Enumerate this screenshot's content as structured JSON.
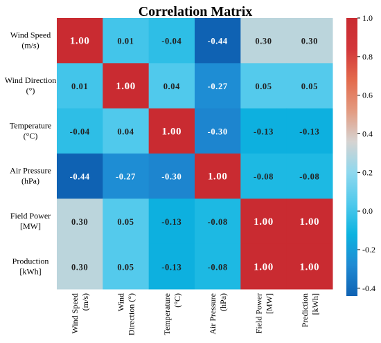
{
  "chart_data": {
    "type": "heatmap",
    "title": "Correlation Matrix",
    "row_labels": [
      [
        "Wind Speed",
        "(m/s)"
      ],
      [
        "Wind Direction",
        "(°)"
      ],
      [
        "Temperature",
        "(°C)"
      ],
      [
        "Air Pressure",
        "(hPa)"
      ],
      [
        "Field Power",
        "[MW]"
      ],
      [
        "Production",
        "[kWh]"
      ]
    ],
    "col_labels": [
      [
        "Wind Speed",
        "(m/s)"
      ],
      [
        "Wind",
        "Direction (°)"
      ],
      [
        "Temperature",
        "(°C)"
      ],
      [
        "Air Pressure",
        "(hPa)"
      ],
      [
        "Field Power",
        "[MW]"
      ],
      [
        "Prediction",
        "[kWh]"
      ]
    ],
    "values": [
      [
        1.0,
        0.01,
        -0.04,
        -0.44,
        0.3,
        0.3
      ],
      [
        0.01,
        1.0,
        0.04,
        -0.27,
        0.05,
        0.05
      ],
      [
        -0.04,
        0.04,
        1.0,
        -0.3,
        -0.13,
        -0.13
      ],
      [
        -0.44,
        -0.27,
        -0.3,
        1.0,
        -0.08,
        -0.08
      ],
      [
        0.3,
        0.05,
        -0.13,
        -0.08,
        1.0,
        1.0
      ],
      [
        0.3,
        0.05,
        -0.13,
        -0.08,
        1.0,
        1.0
      ]
    ],
    "value_labels": [
      [
        "1.00",
        "0.01",
        "-0.04",
        "-0.44",
        "0.30",
        "0.30"
      ],
      [
        "0.01",
        "1.00",
        "0.04",
        "-0.27",
        "0.05",
        "0.05"
      ],
      [
        "-0.04",
        "0.04",
        "1.00",
        "-0.30",
        "-0.13",
        "-0.13"
      ],
      [
        "-0.44",
        "-0.27",
        "-0.30",
        "1.00",
        "-0.08",
        "-0.08"
      ],
      [
        "0.30",
        "0.05",
        "-0.13",
        "-0.08",
        "1.00",
        "1.00"
      ],
      [
        "0.30",
        "0.05",
        "-0.13",
        "-0.08",
        "1.00",
        "1.00"
      ]
    ],
    "colorbar": {
      "range": [
        -0.44,
        1.0
      ],
      "ticks": [
        "1.0",
        "0.8",
        "0.6",
        "0.4",
        "0.2",
        "0.0",
        "-0.2",
        "-0.4"
      ],
      "tick_values": [
        1.0,
        0.8,
        0.6,
        0.4,
        0.2,
        0.0,
        -0.2,
        -0.4
      ],
      "colormap": [
        "#0f62b3",
        "#1f8ad3",
        "#0cb3e0",
        "#50c9ec",
        "#8ed8ee",
        "#d6d3d1",
        "#e39a80",
        "#e36a4c",
        "#d2363a",
        "#c92b31"
      ]
    }
  }
}
